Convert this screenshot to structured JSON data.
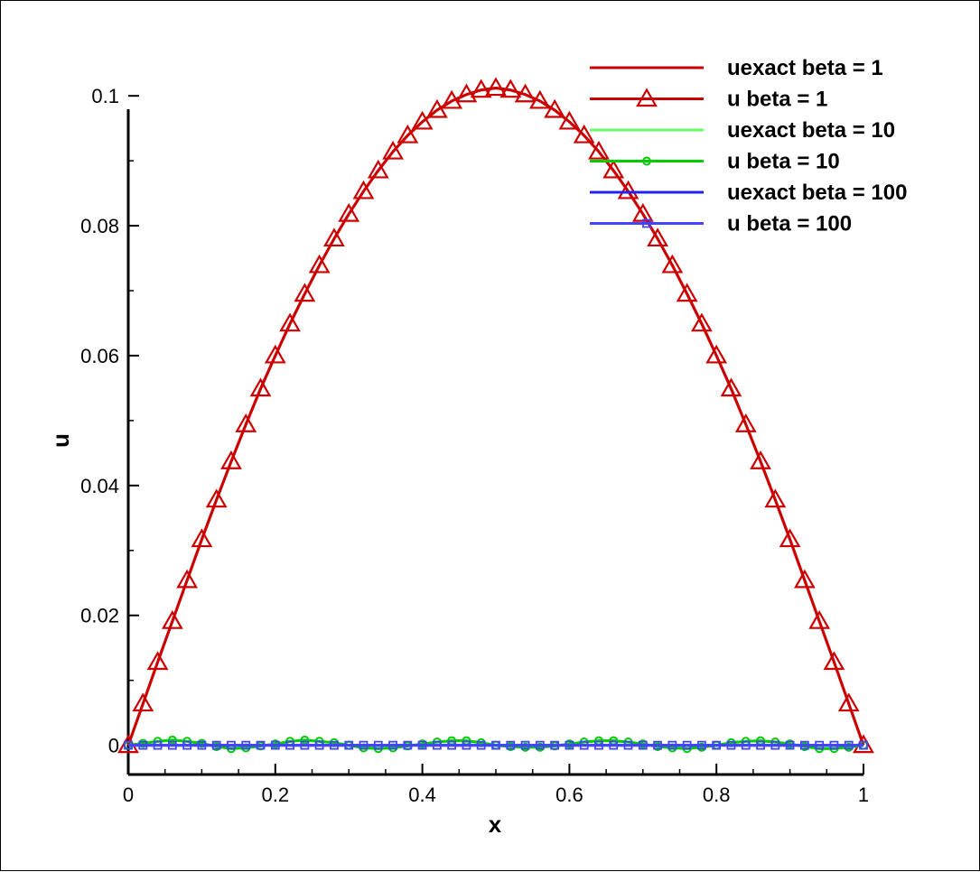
{
  "chart_data": {
    "type": "line",
    "xlabel": "x",
    "ylabel": "u",
    "xlim": [
      0,
      1
    ],
    "ylim": [
      -0.0045,
      0.1035
    ],
    "x_ticks": [
      0,
      0.2,
      0.4,
      0.6,
      0.8,
      1
    ],
    "x_tick_labels": [
      "0",
      "0.2",
      "0.4",
      "0.6",
      "0.8",
      "1"
    ],
    "y_ticks": [
      0,
      0.02,
      0.04,
      0.06,
      0.08,
      0.1
    ],
    "y_tick_labels": [
      "0",
      "0.02",
      "0.04",
      "0.06",
      "0.08",
      "0.1"
    ],
    "grid": false,
    "legend_position": "top-right",
    "x": [
      0,
      0.02,
      0.04,
      0.06,
      0.08,
      0.1,
      0.12,
      0.14,
      0.16,
      0.18,
      0.2,
      0.22,
      0.24,
      0.26,
      0.28,
      0.3,
      0.32,
      0.34,
      0.36,
      0.38,
      0.4,
      0.42,
      0.44,
      0.46,
      0.48,
      0.5,
      0.52,
      0.54,
      0.56,
      0.58,
      0.6,
      0.62,
      0.64,
      0.66,
      0.68,
      0.7,
      0.72,
      0.74,
      0.76,
      0.78,
      0.8,
      0.82,
      0.84,
      0.86,
      0.88,
      0.9,
      0.92,
      0.94,
      0.96,
      0.98,
      1
    ],
    "series": [
      {
        "name": "uexact beta = 1",
        "color": "#cc0000",
        "marker": "none",
        "values": [
          0,
          0.0064,
          0.0128,
          0.0191,
          0.0254,
          0.0317,
          0.0378,
          0.0437,
          0.0494,
          0.0549,
          0.06,
          0.0649,
          0.0695,
          0.0739,
          0.078,
          0.0818,
          0.0853,
          0.0885,
          0.0914,
          0.0939,
          0.096,
          0.0978,
          0.0992,
          0.1002,
          0.1009,
          0.1012,
          0.1009,
          0.1002,
          0.0992,
          0.0978,
          0.096,
          0.0939,
          0.0914,
          0.0885,
          0.0853,
          0.0818,
          0.078,
          0.0739,
          0.0695,
          0.0649,
          0.06,
          0.0549,
          0.0494,
          0.0437,
          0.0378,
          0.0317,
          0.0254,
          0.0191,
          0.0128,
          0.0064,
          0
        ]
      },
      {
        "name": "u beta = 1",
        "color": "#cc0000",
        "marker": "triangle",
        "values": [
          0,
          0.0064,
          0.0128,
          0.0191,
          0.0254,
          0.0317,
          0.0378,
          0.0437,
          0.0494,
          0.0549,
          0.06,
          0.0649,
          0.0695,
          0.0739,
          0.078,
          0.0818,
          0.0853,
          0.0885,
          0.0914,
          0.0939,
          0.096,
          0.0978,
          0.0992,
          0.1002,
          0.1009,
          0.1012,
          0.1009,
          0.1002,
          0.0992,
          0.0978,
          0.096,
          0.0939,
          0.0914,
          0.0885,
          0.0853,
          0.0818,
          0.078,
          0.0739,
          0.0695,
          0.0649,
          0.06,
          0.0549,
          0.0494,
          0.0437,
          0.0378,
          0.0317,
          0.0254,
          0.0191,
          0.0128,
          0.0064,
          0
        ]
      },
      {
        "name": "uexact beta = 10",
        "color": "#66ff66",
        "marker": "none",
        "values": [
          0,
          0.0003,
          0.0006,
          0.0008,
          0.0006,
          0.0003,
          -0.0002,
          -0.0005,
          -0.0004,
          -0.0001,
          0.0002,
          0.0006,
          0.0008,
          0.0006,
          0.0004,
          0.0,
          -0.0004,
          -0.0005,
          -0.0004,
          -0.0001,
          0.0002,
          0.0005,
          0.0007,
          0.0007,
          0.0004,
          0.0,
          -0.0002,
          -0.0003,
          -0.0003,
          -0.0001,
          0.0002,
          0.0005,
          0.0007,
          0.0007,
          0.0005,
          0.0002,
          -0.0002,
          -0.0004,
          -0.0005,
          -0.0003,
          0.0,
          0.0004,
          0.0006,
          0.0007,
          0.0005,
          0.0002,
          -0.0002,
          -0.0005,
          -0.0005,
          -0.0003,
          0
        ]
      },
      {
        "name": "u beta = 10",
        "color": "#00cc00",
        "marker": "circle",
        "values": [
          0,
          0.0003,
          0.0006,
          0.0008,
          0.0006,
          0.0003,
          -0.0002,
          -0.0005,
          -0.0004,
          -0.0001,
          0.0002,
          0.0006,
          0.0008,
          0.0006,
          0.0004,
          0.0,
          -0.0004,
          -0.0005,
          -0.0004,
          -0.0001,
          0.0002,
          0.0005,
          0.0007,
          0.0007,
          0.0004,
          0.0,
          -0.0002,
          -0.0003,
          -0.0003,
          -0.0001,
          0.0002,
          0.0005,
          0.0007,
          0.0007,
          0.0005,
          0.0002,
          -0.0002,
          -0.0004,
          -0.0005,
          -0.0003,
          0.0,
          0.0004,
          0.0006,
          0.0007,
          0.0005,
          0.0002,
          -0.0002,
          -0.0005,
          -0.0005,
          -0.0003,
          0
        ]
      },
      {
        "name": "uexact beta = 100",
        "color": "#2222ee",
        "marker": "none",
        "values": [
          0,
          0,
          0,
          0,
          0,
          0,
          0,
          0,
          0,
          0,
          0,
          0,
          0,
          0,
          0,
          0,
          0,
          0,
          0,
          0,
          0,
          0,
          0,
          0,
          0,
          0,
          0,
          0,
          0,
          0,
          0,
          0,
          0,
          0,
          0,
          0,
          0,
          0,
          0,
          0,
          0,
          0,
          0,
          0,
          0,
          0,
          0,
          0,
          0,
          0,
          0
        ]
      },
      {
        "name": "u beta = 100",
        "color": "#4444ff",
        "marker": "square",
        "values": [
          0,
          0,
          0,
          0,
          0,
          0,
          0,
          0,
          0,
          0,
          0,
          0,
          0,
          0,
          0,
          0,
          0,
          0,
          0,
          0,
          0,
          0,
          0,
          0,
          0,
          0,
          0,
          0,
          0,
          0,
          0,
          0,
          0,
          0,
          0,
          0,
          0,
          0,
          0,
          0,
          0,
          0,
          0,
          0,
          0,
          0,
          0,
          0,
          0,
          0,
          0
        ]
      }
    ]
  }
}
